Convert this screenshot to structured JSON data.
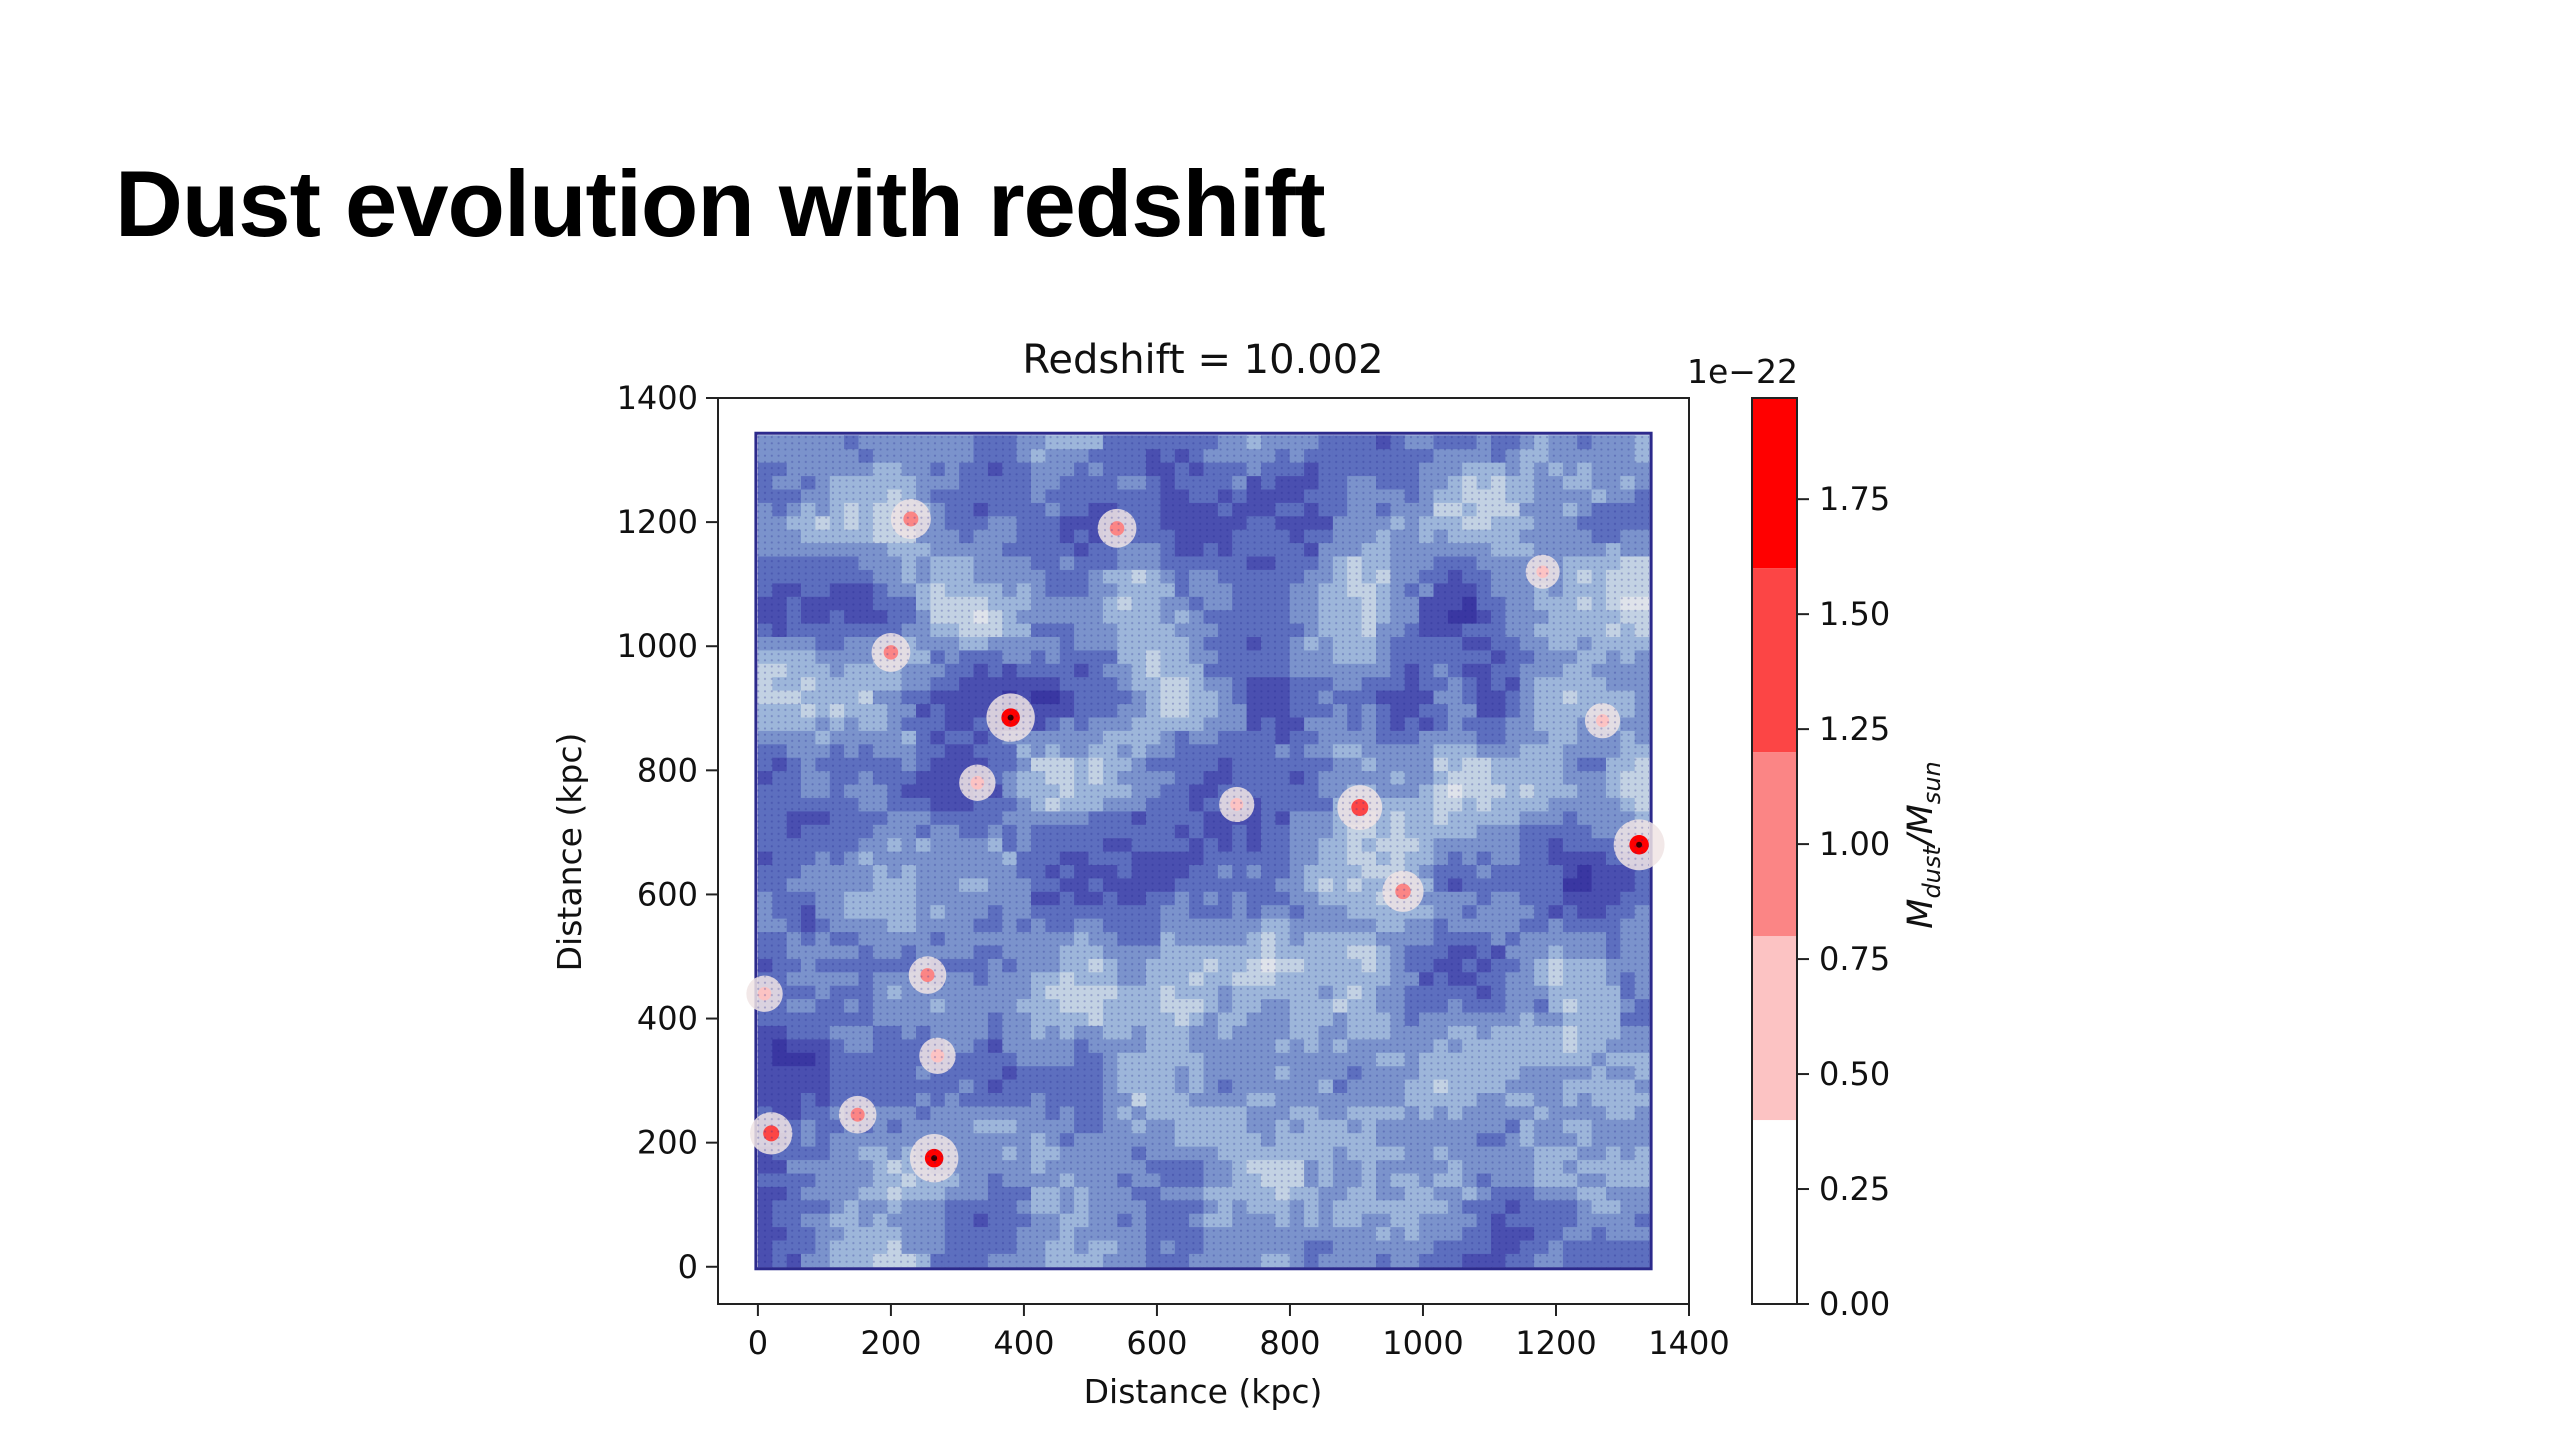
{
  "slide": {
    "title": "Dust evolution with redshift"
  },
  "chart_data": {
    "type": "heatmap",
    "title": "Redshift = 10.002",
    "xlabel": "Distance (kpc)",
    "ylabel": "Distance (kpc)",
    "xlim": [
      -60,
      1400
    ],
    "ylim": [
      -60,
      1400
    ],
    "x_ticks": [
      0,
      200,
      400,
      600,
      800,
      1000,
      1200,
      1400
    ],
    "y_ticks": [
      0,
      200,
      400,
      600,
      800,
      1000,
      1200,
      1400
    ],
    "data_extent": [
      0,
      1340
    ],
    "grid": false,
    "base_colormap": "blue-white (coolwarm lower half)",
    "dust_hotspots": [
      {
        "x": 380,
        "y": 885,
        "value": 1.7
      },
      {
        "x": 1325,
        "y": 680,
        "value": 1.9
      },
      {
        "x": 265,
        "y": 175,
        "value": 1.7
      },
      {
        "x": 20,
        "y": 215,
        "value": 1.2
      },
      {
        "x": 905,
        "y": 740,
        "value": 1.4
      },
      {
        "x": 970,
        "y": 605,
        "value": 1.1
      },
      {
        "x": 230,
        "y": 1205,
        "value": 1.0
      },
      {
        "x": 540,
        "y": 1190,
        "value": 0.9
      },
      {
        "x": 200,
        "y": 990,
        "value": 0.9
      },
      {
        "x": 150,
        "y": 245,
        "value": 0.8
      },
      {
        "x": 255,
        "y": 470,
        "value": 0.8
      },
      {
        "x": 270,
        "y": 340,
        "value": 0.7
      },
      {
        "x": 10,
        "y": 440,
        "value": 0.7
      },
      {
        "x": 1270,
        "y": 880,
        "value": 0.6
      },
      {
        "x": 330,
        "y": 780,
        "value": 0.7
      },
      {
        "x": 720,
        "y": 745,
        "value": 0.6
      },
      {
        "x": 1180,
        "y": 1120,
        "value": 0.5
      }
    ],
    "colorbar": {
      "label": "M_dust/M_sun",
      "offset_text": "1e−22",
      "range": [
        0,
        1.97
      ],
      "ticks": [
        "0.00",
        "0.25",
        "0.50",
        "0.75",
        "1.00",
        "1.25",
        "1.50",
        "1.75"
      ],
      "levels": [
        {
          "from": 0.0,
          "to": 0.4,
          "color": "#ffffff"
        },
        {
          "from": 0.4,
          "to": 0.8,
          "color": "#fcc3c3"
        },
        {
          "from": 0.8,
          "to": 1.2,
          "color": "#fb8585"
        },
        {
          "from": 1.2,
          "to": 1.6,
          "color": "#fc4545"
        },
        {
          "from": 1.6,
          "to": 1.97,
          "color": "#ff0000"
        }
      ]
    }
  }
}
